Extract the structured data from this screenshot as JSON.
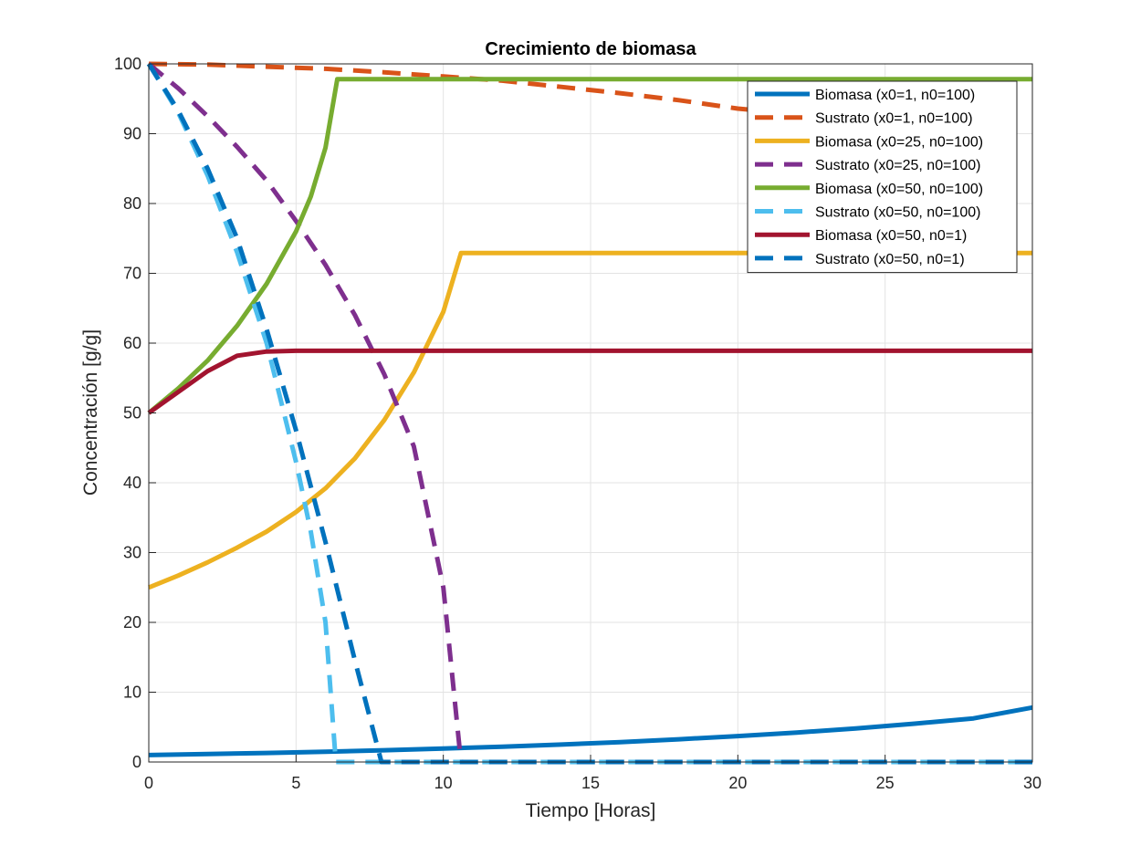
{
  "chart_data": {
    "type": "line",
    "title": "Crecimiento de biomasa",
    "xlabel": "Tiempo [Horas]",
    "ylabel": "Concentración [g/g]",
    "xlim": [
      0,
      30
    ],
    "ylim": [
      0,
      100
    ],
    "xticks": [
      0,
      5,
      10,
      15,
      20,
      25,
      30
    ],
    "yticks": [
      0,
      10,
      20,
      30,
      40,
      50,
      60,
      70,
      80,
      90,
      100
    ],
    "xtick_labels": [
      "0",
      "5",
      "10",
      "15",
      "20",
      "25",
      "30"
    ],
    "ytick_labels": [
      "0",
      "10",
      "20",
      "30",
      "40",
      "50",
      "60",
      "70",
      "80",
      "90",
      "100"
    ],
    "grid": true,
    "legend_position": "top-right",
    "series": [
      {
        "name": "Biomasa (x0=1, n0=100)",
        "color": "#0072BD",
        "dashed": false,
        "x": [
          0,
          2,
          4,
          6,
          8,
          10,
          12,
          14,
          16,
          18,
          20,
          22,
          24,
          26,
          28,
          30
        ],
        "y": [
          1.0,
          1.14,
          1.3,
          1.48,
          1.69,
          1.93,
          2.2,
          2.5,
          2.85,
          3.25,
          3.71,
          4.22,
          4.81,
          5.49,
          6.25,
          7.8
        ]
      },
      {
        "name": "Sustrato (x0=1, n0=100)",
        "color": "#D95319",
        "dashed": true,
        "x": [
          0,
          2,
          4,
          6,
          8,
          10,
          12,
          14,
          16,
          18,
          20,
          22
        ],
        "y": [
          100,
          99.9,
          99.6,
          99.3,
          98.8,
          98.2,
          97.6,
          96.7,
          95.8,
          94.8,
          93.6,
          92.8
        ]
      },
      {
        "name": "Biomasa (x0=25, n0=100)",
        "color": "#EDB120",
        "dashed": false,
        "x": [
          0,
          1,
          2,
          3,
          4,
          5,
          6,
          7,
          8,
          9,
          10,
          10.6,
          12,
          15,
          20,
          25,
          30
        ],
        "y": [
          25,
          26.7,
          28.6,
          30.7,
          33.0,
          35.8,
          39.2,
          43.5,
          49.0,
          55.8,
          64.5,
          72.9,
          72.9,
          72.9,
          72.9,
          72.9,
          72.9
        ]
      },
      {
        "name": "Sustrato (x0=25, n0=100)",
        "color": "#7E2F8E",
        "dashed": true,
        "x": [
          0,
          1,
          2,
          3,
          4,
          5,
          6,
          7,
          8,
          9,
          10,
          10.6,
          11,
          15,
          20,
          25,
          30
        ],
        "y": [
          100,
          96.5,
          92.5,
          88.1,
          83.3,
          77.5,
          71.2,
          64.0,
          55.5,
          45.2,
          25.0,
          0,
          0,
          0,
          0,
          0,
          0
        ]
      },
      {
        "name": "Biomasa (x0=50, n0=100)",
        "color": "#77AC30",
        "dashed": false,
        "x": [
          0,
          1,
          2,
          3,
          4,
          5,
          5.5,
          6,
          6.4,
          7,
          10,
          15,
          20,
          25,
          30
        ],
        "y": [
          50,
          53.5,
          57.5,
          62.5,
          68.5,
          76.0,
          81.0,
          88.0,
          97.8,
          97.8,
          97.8,
          97.8,
          97.8,
          97.8,
          97.8
        ]
      },
      {
        "name": "Sustrato (x0=50, n0=100)",
        "color": "#4DBEEE",
        "dashed": true,
        "x": [
          0,
          1,
          2,
          3,
          4,
          5,
          5.5,
          6,
          6.35,
          6.5,
          10,
          15,
          20,
          25,
          30
        ],
        "y": [
          100,
          93.0,
          84.0,
          73.0,
          60.0,
          43.0,
          33.0,
          20.0,
          0,
          0,
          0,
          0,
          0,
          0,
          0
        ]
      },
      {
        "name": "Biomasa (x0=50, n0=1)",
        "color": "#A2142F",
        "dashed": false,
        "x": [
          0,
          1,
          2,
          3,
          4,
          5,
          6,
          10,
          15,
          20,
          25,
          30
        ],
        "y": [
          50,
          53.0,
          56.0,
          58.2,
          58.8,
          58.9,
          58.9,
          58.9,
          58.9,
          58.9,
          58.9,
          58.9
        ]
      },
      {
        "name": "Sustrato (x0=50, n0=1)",
        "color": "#0072BD",
        "dashed": true,
        "x": [
          0,
          1,
          2,
          3,
          4,
          5,
          6,
          7,
          7.9,
          8.5,
          10,
          15,
          20,
          25,
          30
        ],
        "y": [
          100,
          93.3,
          85.0,
          75.0,
          62.0,
          47.5,
          31.5,
          14.5,
          0,
          0,
          0,
          0,
          0,
          0,
          0
        ]
      }
    ]
  }
}
